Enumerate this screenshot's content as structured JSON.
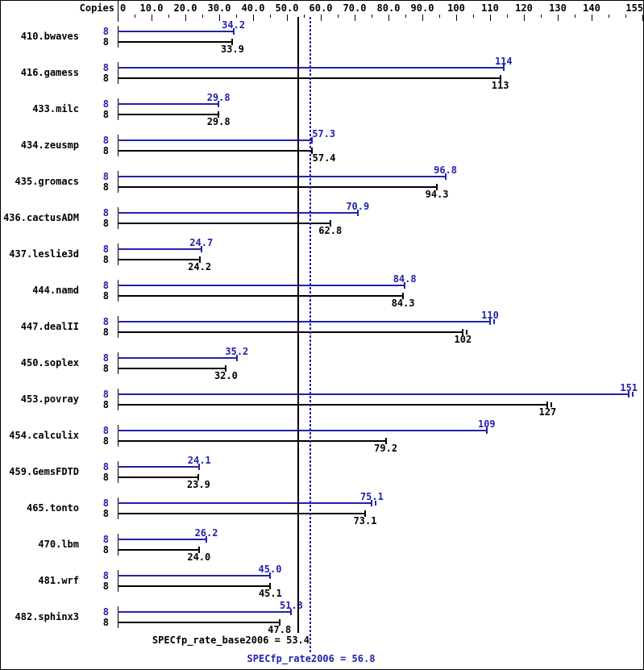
{
  "chart_data": {
    "type": "bar",
    "orientation": "horizontal",
    "copies_header": "Copies",
    "axis": {
      "min": 0,
      "max": 155,
      "major_labels": [
        {
          "v": 0,
          "t": "0"
        },
        {
          "v": 10,
          "t": "10.0"
        },
        {
          "v": 20,
          "t": "20.0"
        },
        {
          "v": 30,
          "t": "30.0"
        },
        {
          "v": 40,
          "t": "40.0"
        },
        {
          "v": 50,
          "t": "50.0"
        },
        {
          "v": 60,
          "t": "60.0"
        },
        {
          "v": 70,
          "t": "70.0"
        },
        {
          "v": 80,
          "t": "80.0"
        },
        {
          "v": 90,
          "t": "90.0"
        },
        {
          "v": 100,
          "t": "100"
        },
        {
          "v": 110,
          "t": "110"
        },
        {
          "v": 120,
          "t": "120"
        },
        {
          "v": 130,
          "t": "130"
        },
        {
          "v": 140,
          "t": "140"
        },
        {
          "v": 155,
          "t": "155"
        }
      ],
      "minor_ticks": [
        5,
        15,
        25,
        35,
        45,
        55,
        65,
        75,
        85,
        95,
        105,
        115,
        125,
        135,
        145,
        150
      ]
    },
    "series": [
      {
        "name": "peak",
        "color": "#2222aa"
      },
      {
        "name": "base",
        "color": "#000000"
      }
    ],
    "benchmarks": [
      {
        "name": "410.bwaves",
        "copies": "8",
        "peak": 34.2,
        "peak_label": "34.2",
        "base": 33.9,
        "base_label": "33.9"
      },
      {
        "name": "416.gamess",
        "copies": "8",
        "peak": 114,
        "peak_label": "114",
        "base": 113,
        "base_label": "113"
      },
      {
        "name": "433.milc",
        "copies": "8",
        "peak": 29.8,
        "peak_label": "29.8",
        "base": 29.8,
        "base_label": "29.8"
      },
      {
        "name": "434.zeusmp",
        "copies": "8",
        "peak": 57.3,
        "peak_label": "57.3",
        "base": 57.4,
        "base_label": "57.4",
        "label_dx": 15
      },
      {
        "name": "435.gromacs",
        "copies": "8",
        "peak": 96.8,
        "peak_label": "96.8",
        "base": 94.3,
        "base_label": "94.3"
      },
      {
        "name": "436.cactusADM",
        "copies": "8",
        "peak": 70.9,
        "peak_label": "70.9",
        "base": 62.8,
        "base_label": "62.8"
      },
      {
        "name": "437.leslie3d",
        "copies": "8",
        "peak": 24.7,
        "peak_label": "24.7",
        "base": 24.2,
        "base_label": "24.2"
      },
      {
        "name": "444.namd",
        "copies": "8",
        "peak": 84.8,
        "peak_label": "84.8",
        "base": 84.3,
        "base_label": "84.3"
      },
      {
        "name": "447.dealII",
        "copies": "8",
        "peak": 110,
        "peak_label": "110",
        "base": 102,
        "base_label": "102",
        "peak_err": true,
        "base_err": true
      },
      {
        "name": "450.soplex",
        "copies": "8",
        "peak": 35.2,
        "peak_label": "35.2",
        "base": 32.0,
        "base_label": "32.0"
      },
      {
        "name": "453.povray",
        "copies": "8",
        "peak": 151,
        "peak_label": "151",
        "base": 127,
        "base_label": "127",
        "peak_err": true,
        "base_err": true
      },
      {
        "name": "454.calculix",
        "copies": "8",
        "peak": 109,
        "peak_label": "109",
        "base": 79.2,
        "base_label": "79.2"
      },
      {
        "name": "459.GemsFDTD",
        "copies": "8",
        "peak": 24.1,
        "peak_label": "24.1",
        "base": 23.9,
        "base_label": "23.9"
      },
      {
        "name": "465.tonto",
        "copies": "8",
        "peak": 75.1,
        "peak_label": "75.1",
        "base": 73.1,
        "base_label": "73.1",
        "peak_err": true
      },
      {
        "name": "470.lbm",
        "copies": "8",
        "peak": 26.2,
        "peak_label": "26.2",
        "base": 24.0,
        "base_label": "24.0"
      },
      {
        "name": "481.wrf",
        "copies": "8",
        "peak": 45.0,
        "peak_label": "45.0",
        "base": 45.1,
        "base_label": "45.1"
      },
      {
        "name": "482.sphinx3",
        "copies": "8",
        "peak": 51.3,
        "peak_label": "51.3",
        "base": 47.8,
        "base_label": "47.8"
      }
    ],
    "summary": {
      "base": {
        "label": "SPECfp_rate_base2006 = 53.4",
        "value": 53.4
      },
      "peak": {
        "label": "SPECfp_rate2006 = 56.8",
        "value": 56.8
      }
    },
    "colors": {
      "peak": "#2222aa",
      "base": "#000000",
      "background": "#ffffff",
      "border": "#000000"
    }
  }
}
